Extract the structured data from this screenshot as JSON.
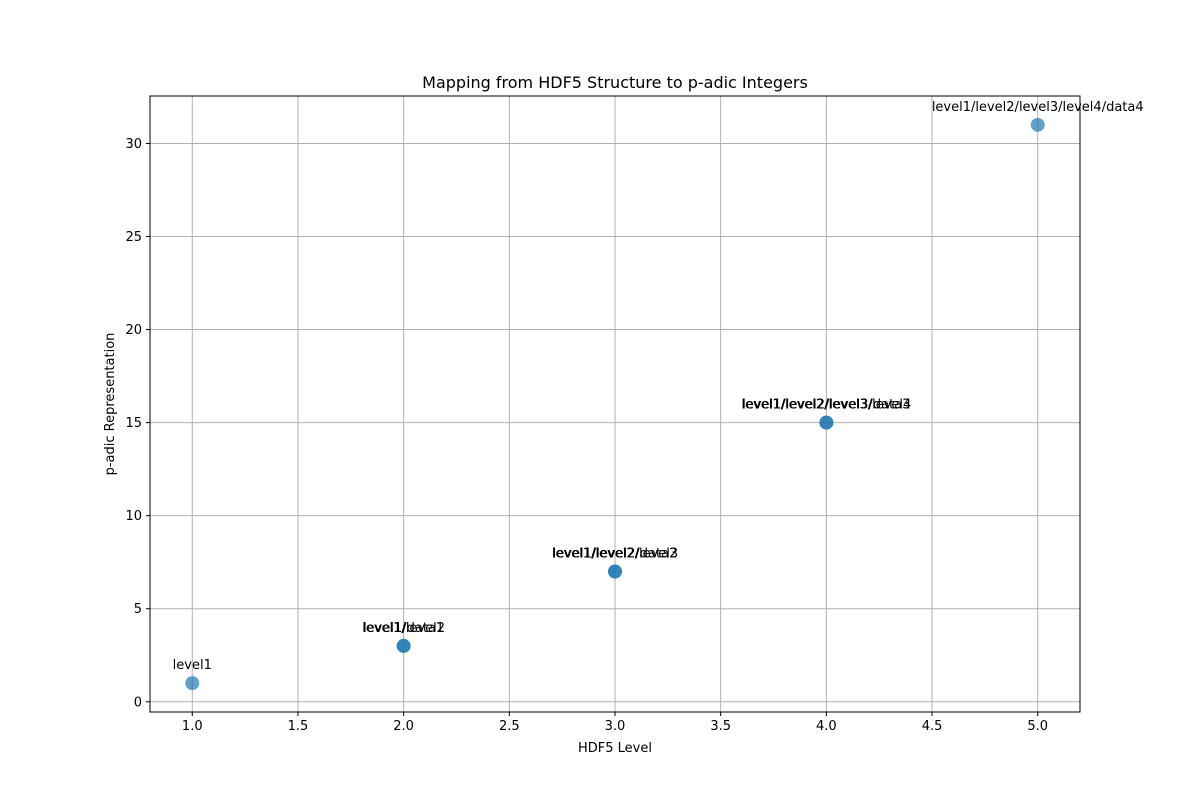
{
  "chart_data": {
    "type": "scatter",
    "title": "Mapping from HDF5 Structure to p-adic Integers",
    "xlabel": "HDF5 Level",
    "ylabel": "p-adic Representation",
    "xlim": [
      0.8,
      5.2
    ],
    "ylim": [
      -0.55,
      32.55
    ],
    "xticks": [
      "1.0",
      "1.5",
      "2.0",
      "2.5",
      "3.0",
      "3.5",
      "4.0",
      "4.5",
      "5.0"
    ],
    "xtick_values": [
      1.0,
      1.5,
      2.0,
      2.5,
      3.0,
      3.5,
      4.0,
      4.5,
      5.0
    ],
    "yticks": [
      "0",
      "5",
      "10",
      "15",
      "20",
      "25",
      "30"
    ],
    "ytick_values": [
      0,
      5,
      10,
      15,
      20,
      25,
      30
    ],
    "grid": true,
    "marker_color": "#1f77b4",
    "points": [
      {
        "x": 1,
        "y": 1,
        "label": "level1"
      },
      {
        "x": 2,
        "y": 3,
        "label": "level1/level2"
      },
      {
        "x": 2,
        "y": 3,
        "label": "level1/data1"
      },
      {
        "x": 3,
        "y": 7,
        "label": "level1/level2/level3"
      },
      {
        "x": 3,
        "y": 7,
        "label": "level1/level2/data2"
      },
      {
        "x": 4,
        "y": 15,
        "label": "level1/level2/level3/level4"
      },
      {
        "x": 4,
        "y": 15,
        "label": "level1/level2/level3/data3"
      },
      {
        "x": 5,
        "y": 31,
        "label": "level1/level2/level3/level4/data4"
      }
    ]
  }
}
